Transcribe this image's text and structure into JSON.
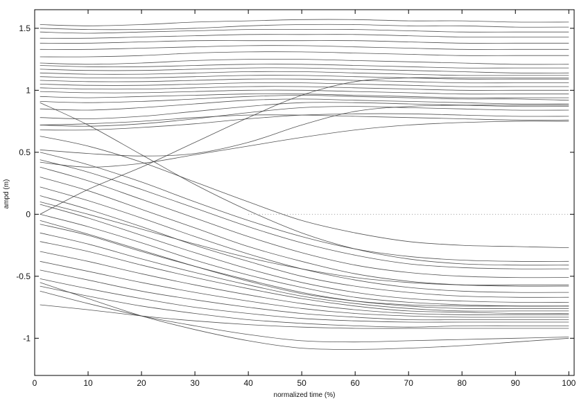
{
  "chart_data": {
    "type": "line",
    "title": "",
    "xlabel": "normalized time (%)",
    "ylabel": "ampd (m)",
    "xlim": [
      0,
      101
    ],
    "ylim": [
      -1.3,
      1.65
    ],
    "xticks": [
      0,
      10,
      20,
      30,
      40,
      50,
      60,
      70,
      80,
      90,
      100
    ],
    "yticks": [
      -1,
      -0.5,
      0,
      0.5,
      1,
      1.5
    ],
    "grid": false,
    "legend": "none",
    "line_color": "#333333",
    "x": [
      1,
      10,
      20,
      30,
      40,
      50,
      60,
      70,
      80,
      90,
      100
    ],
    "series": [
      {
        "values": [
          1.53,
          1.52,
          1.53,
          1.55,
          1.56,
          1.57,
          1.57,
          1.56,
          1.56,
          1.55,
          1.55
        ]
      },
      {
        "values": [
          1.5,
          1.49,
          1.49,
          1.5,
          1.52,
          1.53,
          1.53,
          1.52,
          1.52,
          1.51,
          1.51
        ]
      },
      {
        "values": [
          1.47,
          1.46,
          1.47,
          1.48,
          1.49,
          1.49,
          1.49,
          1.48,
          1.47,
          1.47,
          1.47
        ]
      },
      {
        "values": [
          1.42,
          1.42,
          1.43,
          1.44,
          1.45,
          1.45,
          1.45,
          1.44,
          1.43,
          1.43,
          1.43
        ]
      },
      {
        "values": [
          1.38,
          1.38,
          1.39,
          1.4,
          1.4,
          1.4,
          1.4,
          1.39,
          1.38,
          1.38,
          1.38
        ]
      },
      {
        "values": [
          1.33,
          1.33,
          1.34,
          1.35,
          1.36,
          1.36,
          1.35,
          1.34,
          1.33,
          1.33,
          1.33
        ]
      },
      {
        "values": [
          1.27,
          1.27,
          1.28,
          1.3,
          1.31,
          1.31,
          1.3,
          1.29,
          1.28,
          1.28,
          1.28
        ]
      },
      {
        "values": [
          1.22,
          1.21,
          1.22,
          1.24,
          1.25,
          1.25,
          1.24,
          1.23,
          1.22,
          1.21,
          1.21
        ]
      },
      {
        "values": [
          1.2,
          1.19,
          1.19,
          1.2,
          1.21,
          1.21,
          1.2,
          1.19,
          1.18,
          1.18,
          1.18
        ]
      },
      {
        "values": [
          1.17,
          1.16,
          1.16,
          1.17,
          1.18,
          1.18,
          1.17,
          1.16,
          1.15,
          1.14,
          1.14
        ]
      },
      {
        "values": [
          1.14,
          1.13,
          1.13,
          1.14,
          1.15,
          1.15,
          1.14,
          1.13,
          1.12,
          1.12,
          1.12
        ]
      },
      {
        "values": [
          1.11,
          1.1,
          1.1,
          1.11,
          1.12,
          1.12,
          1.11,
          1.1,
          1.09,
          1.09,
          1.09
        ]
      },
      {
        "values": [
          1.08,
          1.07,
          1.07,
          1.08,
          1.09,
          1.09,
          1.08,
          1.07,
          1.06,
          1.06,
          1.06
        ]
      },
      {
        "values": [
          1.05,
          1.04,
          1.04,
          1.05,
          1.06,
          1.06,
          1.05,
          1.04,
          1.03,
          1.03,
          1.03
        ]
      },
      {
        "values": [
          1.02,
          1.01,
          1.01,
          1.02,
          1.03,
          1.03,
          1.02,
          1.01,
          1.0,
          1.0,
          1.0
        ]
      },
      {
        "values": [
          0.99,
          0.98,
          0.98,
          0.99,
          1.0,
          1.0,
          0.99,
          0.98,
          0.97,
          0.97,
          0.97
        ]
      },
      {
        "values": [
          0.95,
          0.94,
          0.95,
          0.96,
          0.97,
          0.97,
          0.96,
          0.95,
          0.94,
          0.94,
          0.94
        ]
      },
      {
        "values": [
          0.91,
          0.9,
          0.91,
          0.93,
          0.95,
          0.96,
          0.95,
          0.94,
          0.93,
          0.93,
          0.92
        ]
      },
      {
        "values": [
          0.85,
          0.84,
          0.86,
          0.89,
          0.92,
          0.93,
          0.92,
          0.91,
          0.9,
          0.89,
          0.89
        ]
      },
      {
        "values": [
          0.78,
          0.77,
          0.79,
          0.83,
          0.87,
          0.9,
          0.9,
          0.89,
          0.88,
          0.87,
          0.87
        ]
      },
      {
        "values": [
          0.72,
          0.71,
          0.73,
          0.77,
          0.82,
          0.86,
          0.87,
          0.86,
          0.85,
          0.84,
          0.84
        ]
      },
      {
        "values": [
          0.68,
          0.68,
          0.7,
          0.73,
          0.77,
          0.8,
          0.81,
          0.81,
          0.8,
          0.79,
          0.79
        ]
      },
      {
        "values": [
          0.72,
          0.73,
          0.75,
          0.78,
          0.8,
          0.8,
          0.79,
          0.78,
          0.77,
          0.76,
          0.76
        ]
      },
      {
        "values": [
          0.52,
          0.49,
          0.47,
          0.49,
          0.58,
          0.72,
          0.83,
          0.87,
          0.88,
          0.88,
          0.88
        ]
      },
      {
        "values": [
          0.42,
          0.38,
          0.41,
          0.48,
          0.55,
          0.62,
          0.68,
          0.72,
          0.74,
          0.75,
          0.75
        ]
      },
      {
        "values": [
          0.63,
          0.55,
          0.42,
          0.26,
          0.1,
          -0.05,
          -0.15,
          -0.22,
          -0.25,
          -0.26,
          -0.27
        ]
      },
      {
        "values": [
          0.5,
          0.4,
          0.26,
          0.1,
          -0.05,
          -0.18,
          -0.28,
          -0.34,
          -0.37,
          -0.38,
          -0.38
        ]
      },
      {
        "values": [
          0.44,
          0.34,
          0.2,
          0.05,
          -0.1,
          -0.23,
          -0.33,
          -0.4,
          -0.43,
          -0.44,
          -0.44
        ]
      },
      {
        "values": [
          0.38,
          0.27,
          0.12,
          -0.03,
          -0.18,
          -0.31,
          -0.41,
          -0.47,
          -0.5,
          -0.51,
          -0.51
        ]
      },
      {
        "values": [
          0.3,
          0.19,
          0.04,
          -0.11,
          -0.26,
          -0.38,
          -0.48,
          -0.54,
          -0.57,
          -0.58,
          -0.58
        ]
      },
      {
        "values": [
          0.22,
          0.11,
          -0.03,
          -0.18,
          -0.32,
          -0.44,
          -0.53,
          -0.59,
          -0.62,
          -0.63,
          -0.63
        ]
      },
      {
        "values": [
          0.15,
          0.04,
          -0.1,
          -0.25,
          -0.38,
          -0.5,
          -0.58,
          -0.63,
          -0.66,
          -0.67,
          -0.67
        ]
      },
      {
        "values": [
          0.08,
          -0.03,
          -0.17,
          -0.31,
          -0.44,
          -0.55,
          -0.63,
          -0.68,
          -0.7,
          -0.71,
          -0.71
        ]
      },
      {
        "values": [
          0.0,
          -0.1,
          -0.23,
          -0.37,
          -0.49,
          -0.59,
          -0.67,
          -0.71,
          -0.73,
          -0.74,
          -0.74
        ]
      },
      {
        "values": [
          -0.08,
          -0.17,
          -0.3,
          -0.42,
          -0.53,
          -0.63,
          -0.7,
          -0.74,
          -0.76,
          -0.76,
          -0.76
        ]
      },
      {
        "values": [
          -0.15,
          -0.24,
          -0.36,
          -0.47,
          -0.57,
          -0.66,
          -0.72,
          -0.76,
          -0.78,
          -0.78,
          -0.78
        ]
      },
      {
        "values": [
          -0.22,
          -0.3,
          -0.41,
          -0.51,
          -0.6,
          -0.68,
          -0.74,
          -0.78,
          -0.79,
          -0.8,
          -0.8
        ]
      },
      {
        "values": [
          -0.3,
          -0.38,
          -0.48,
          -0.57,
          -0.65,
          -0.72,
          -0.77,
          -0.8,
          -0.81,
          -0.81,
          -0.81
        ]
      },
      {
        "values": [
          -0.38,
          -0.46,
          -0.55,
          -0.63,
          -0.7,
          -0.76,
          -0.8,
          -0.82,
          -0.83,
          -0.83,
          -0.83
        ]
      },
      {
        "values": [
          -0.45,
          -0.53,
          -0.62,
          -0.69,
          -0.75,
          -0.8,
          -0.83,
          -0.85,
          -0.85,
          -0.85,
          -0.85
        ]
      },
      {
        "values": [
          -0.52,
          -0.6,
          -0.68,
          -0.75,
          -0.8,
          -0.84,
          -0.86,
          -0.87,
          -0.87,
          -0.87,
          -0.87
        ]
      },
      {
        "values": [
          -0.58,
          -0.66,
          -0.74,
          -0.8,
          -0.85,
          -0.88,
          -0.9,
          -0.91,
          -0.9,
          -0.9,
          -0.9
        ]
      },
      {
        "values": [
          -0.62,
          -0.72,
          -0.82,
          -0.9,
          -0.97,
          -1.02,
          -1.03,
          -1.02,
          -1.01,
          -1.0,
          -0.99
        ]
      },
      {
        "values": [
          -0.73,
          -0.77,
          -0.82,
          -0.86,
          -0.89,
          -0.91,
          -0.92,
          -0.92,
          -0.92,
          -0.92,
          -0.92
        ]
      },
      {
        "values": [
          -0.55,
          -0.68,
          -0.82,
          -0.93,
          -1.02,
          -1.08,
          -1.09,
          -1.08,
          -1.06,
          -1.03,
          -1.0
        ]
      },
      {
        "values": [
          0.1,
          0.0,
          -0.12,
          -0.24,
          -0.35,
          -0.44,
          -0.51,
          -0.55,
          -0.57,
          -0.57,
          -0.57
        ]
      },
      {
        "values": [
          -0.05,
          -0.16,
          -0.29,
          -0.42,
          -0.54,
          -0.64,
          -0.7,
          -0.73,
          -0.74,
          -0.74,
          -0.74
        ]
      },
      {
        "values": [
          0.9,
          0.72,
          0.48,
          0.24,
          0.03,
          -0.15,
          -0.28,
          -0.36,
          -0.4,
          -0.41,
          -0.41
        ]
      },
      {
        "values": [
          0.0,
          0.2,
          0.38,
          0.58,
          0.78,
          0.96,
          1.07,
          1.1,
          1.1,
          1.1,
          1.1
        ]
      }
    ]
  }
}
